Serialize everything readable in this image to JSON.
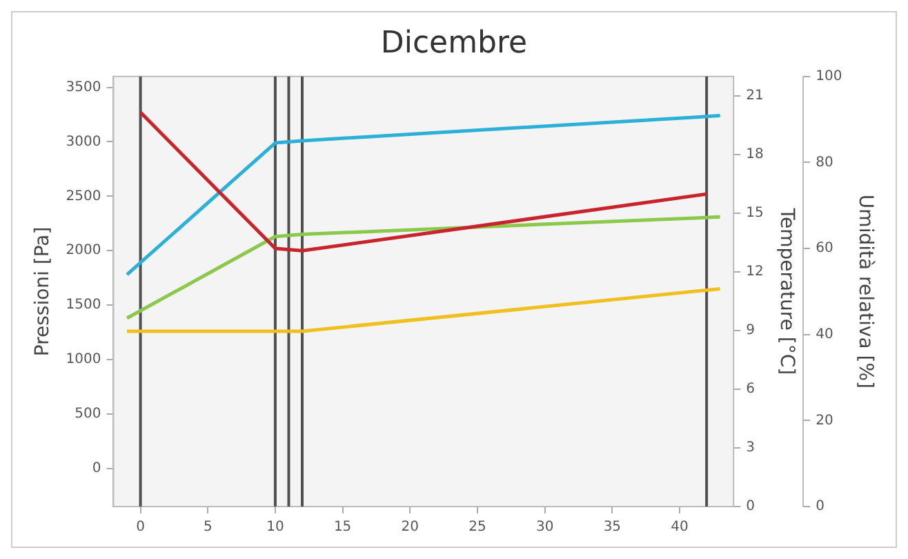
{
  "chart_data": {
    "type": "line",
    "title": "Dicembre",
    "ylabel": "Pressioni [Pa]",
    "y2label": "Temperature [°C]",
    "y3label": "Umidità relativa [%]",
    "xlim": [
      -2,
      44
    ],
    "xticks": [
      0,
      5,
      10,
      15,
      20,
      25,
      30,
      35,
      40
    ],
    "ylim": [
      -350,
      3600
    ],
    "yticks": [
      0,
      500,
      1000,
      1500,
      2000,
      2500,
      3000,
      3500
    ],
    "y2lim": [
      0,
      22
    ],
    "y2ticks": [
      0,
      3,
      6,
      9,
      12,
      15,
      18,
      21
    ],
    "y3lim": [
      0,
      100
    ],
    "y3ticks": [
      0,
      20,
      40,
      60,
      80,
      100
    ],
    "marker": "none",
    "line_style": "solid",
    "series": [
      {
        "color": "#c8242b",
        "x": [
          0,
          10,
          12,
          42
        ],
        "values": [
          3270,
          2020,
          2000,
          2520
        ]
      },
      {
        "color": "#2bb0d8",
        "x": [
          -1,
          10,
          12,
          43
        ],
        "values": [
          1780,
          2990,
          3010,
          3240
        ]
      },
      {
        "color": "#8cc84b",
        "x": [
          -1,
          10,
          12,
          43
        ],
        "values": [
          1380,
          2130,
          2150,
          2310
        ]
      },
      {
        "color": "#f0c020",
        "x": [
          -1,
          10,
          12,
          43
        ],
        "values": [
          1260,
          1260,
          1260,
          1650
        ]
      }
    ],
    "ref_lines": [
      {
        "axis": "x",
        "value": 0,
        "color": "#505050"
      },
      {
        "axis": "x",
        "value": 10,
        "color": "#505050"
      },
      {
        "axis": "x",
        "value": 11,
        "color": "#505050"
      },
      {
        "axis": "x",
        "value": 12,
        "color": "#505050"
      },
      {
        "axis": "x",
        "value": 42,
        "color": "#505050"
      }
    ]
  }
}
